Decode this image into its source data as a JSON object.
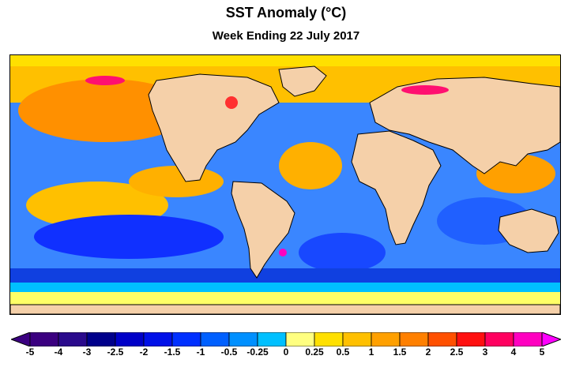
{
  "title": "SST Anomaly (°C)",
  "subtitle": "Week Ending 22 July 2017",
  "legend": {
    "labels": [
      "-5",
      "-4",
      "-3",
      "-2.5",
      "-2",
      "-1.5",
      "-1",
      "-0.5",
      "-0.25",
      "0",
      "0.25",
      "0.5",
      "1",
      "1.5",
      "2",
      "2.5",
      "3",
      "4",
      "5"
    ],
    "colors": [
      "#3b0080",
      "#2a0a8c",
      "#00008b",
      "#0000c8",
      "#0010e8",
      "#0030ff",
      "#0060ff",
      "#0090ff",
      "#00c0ff",
      "#ffff80",
      "#ffe000",
      "#ffc000",
      "#ffa000",
      "#ff8000",
      "#ff5000",
      "#ff1010",
      "#ff0060",
      "#ff00c0"
    ],
    "left_arrow_color": "#3b0080",
    "right_arrow_color": "#ff00ff"
  },
  "colors": {
    "land": "#f5d0a9",
    "coast": "#000000",
    "warm_ocean": "#ffb000",
    "cool_ocean": "#1e64ff",
    "ice": "#ffff66"
  }
}
